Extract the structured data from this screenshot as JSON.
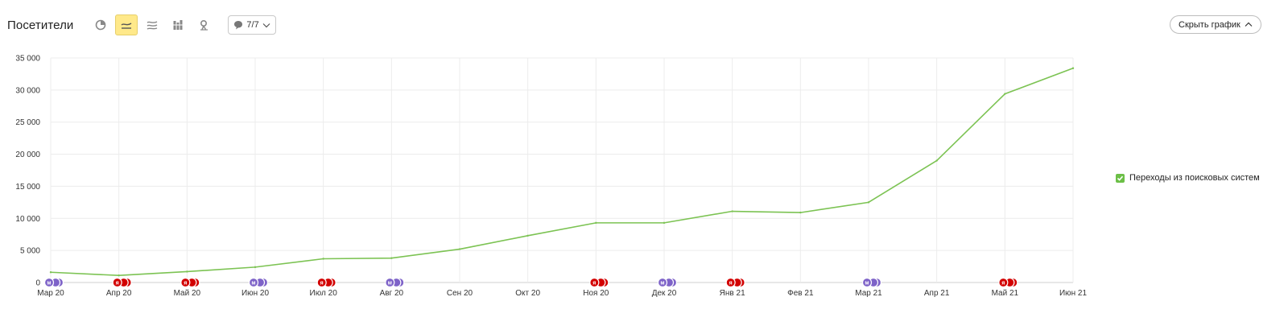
{
  "header": {
    "title": "Посетители",
    "notes_label": "7/7",
    "hide_chart_label": "Скрыть график"
  },
  "toolbar_icons": [
    "pie-chart-icon",
    "line-chart-icon",
    "area-chart-icon",
    "bar-chart-icon",
    "map-pin-icon"
  ],
  "colors": {
    "line": "#7cc353",
    "active_button": "#ffe98a",
    "legend_check": "#6cbf47",
    "marker_yandex": "#d20000",
    "marker_metrica": "#7e63c8"
  },
  "chart_data": {
    "type": "line",
    "categories": [
      "Мар 20",
      "Апр 20",
      "Май 20",
      "Июн 20",
      "Июл 20",
      "Авг 20",
      "Сен 20",
      "Окт 20",
      "Ноя 20",
      "Дек 20",
      "Янв 21",
      "Фев 21",
      "Мар 21",
      "Апр 21",
      "Май 21",
      "Июн 21"
    ],
    "series": [
      {
        "name": "Переходы из поисковых систем",
        "color": "#7cc353",
        "values": [
          1600,
          1100,
          1700,
          2400,
          3700,
          3800,
          5200,
          7300,
          9300,
          9300,
          11100,
          10900,
          12500,
          19000,
          29400,
          33400
        ]
      }
    ],
    "ylim": [
      0,
      35000
    ],
    "yticks": [
      0,
      5000,
      10000,
      15000,
      20000,
      25000,
      30000,
      35000
    ],
    "ytick_labels": [
      "0",
      "5 000",
      "10 000",
      "15 000",
      "20 000",
      "25 000",
      "30 000",
      "35 000"
    ],
    "legend": "right",
    "grid": true,
    "annotations": [
      {
        "category": "Мар 20",
        "type": "metrica",
        "letter": "м"
      },
      {
        "category": "Апр 20",
        "type": "yandex",
        "letter": "я"
      },
      {
        "category": "Май 20",
        "type": "yandex",
        "letter": "я"
      },
      {
        "category": "Июн 20",
        "type": "metrica",
        "letter": "м"
      },
      {
        "category": "Июл 20",
        "type": "yandex",
        "letter": "я"
      },
      {
        "category": "Авг 20",
        "type": "metrica",
        "letter": "м"
      },
      {
        "category": "Ноя 20",
        "type": "yandex",
        "letter": "я"
      },
      {
        "category": "Дек 20",
        "type": "metrica",
        "letter": "м"
      },
      {
        "category": "Янв 21",
        "type": "yandex",
        "letter": "я"
      },
      {
        "category": "Мар 21",
        "type": "metrica",
        "letter": "м"
      },
      {
        "category": "Май 21",
        "type": "yandex",
        "letter": "я"
      }
    ]
  }
}
